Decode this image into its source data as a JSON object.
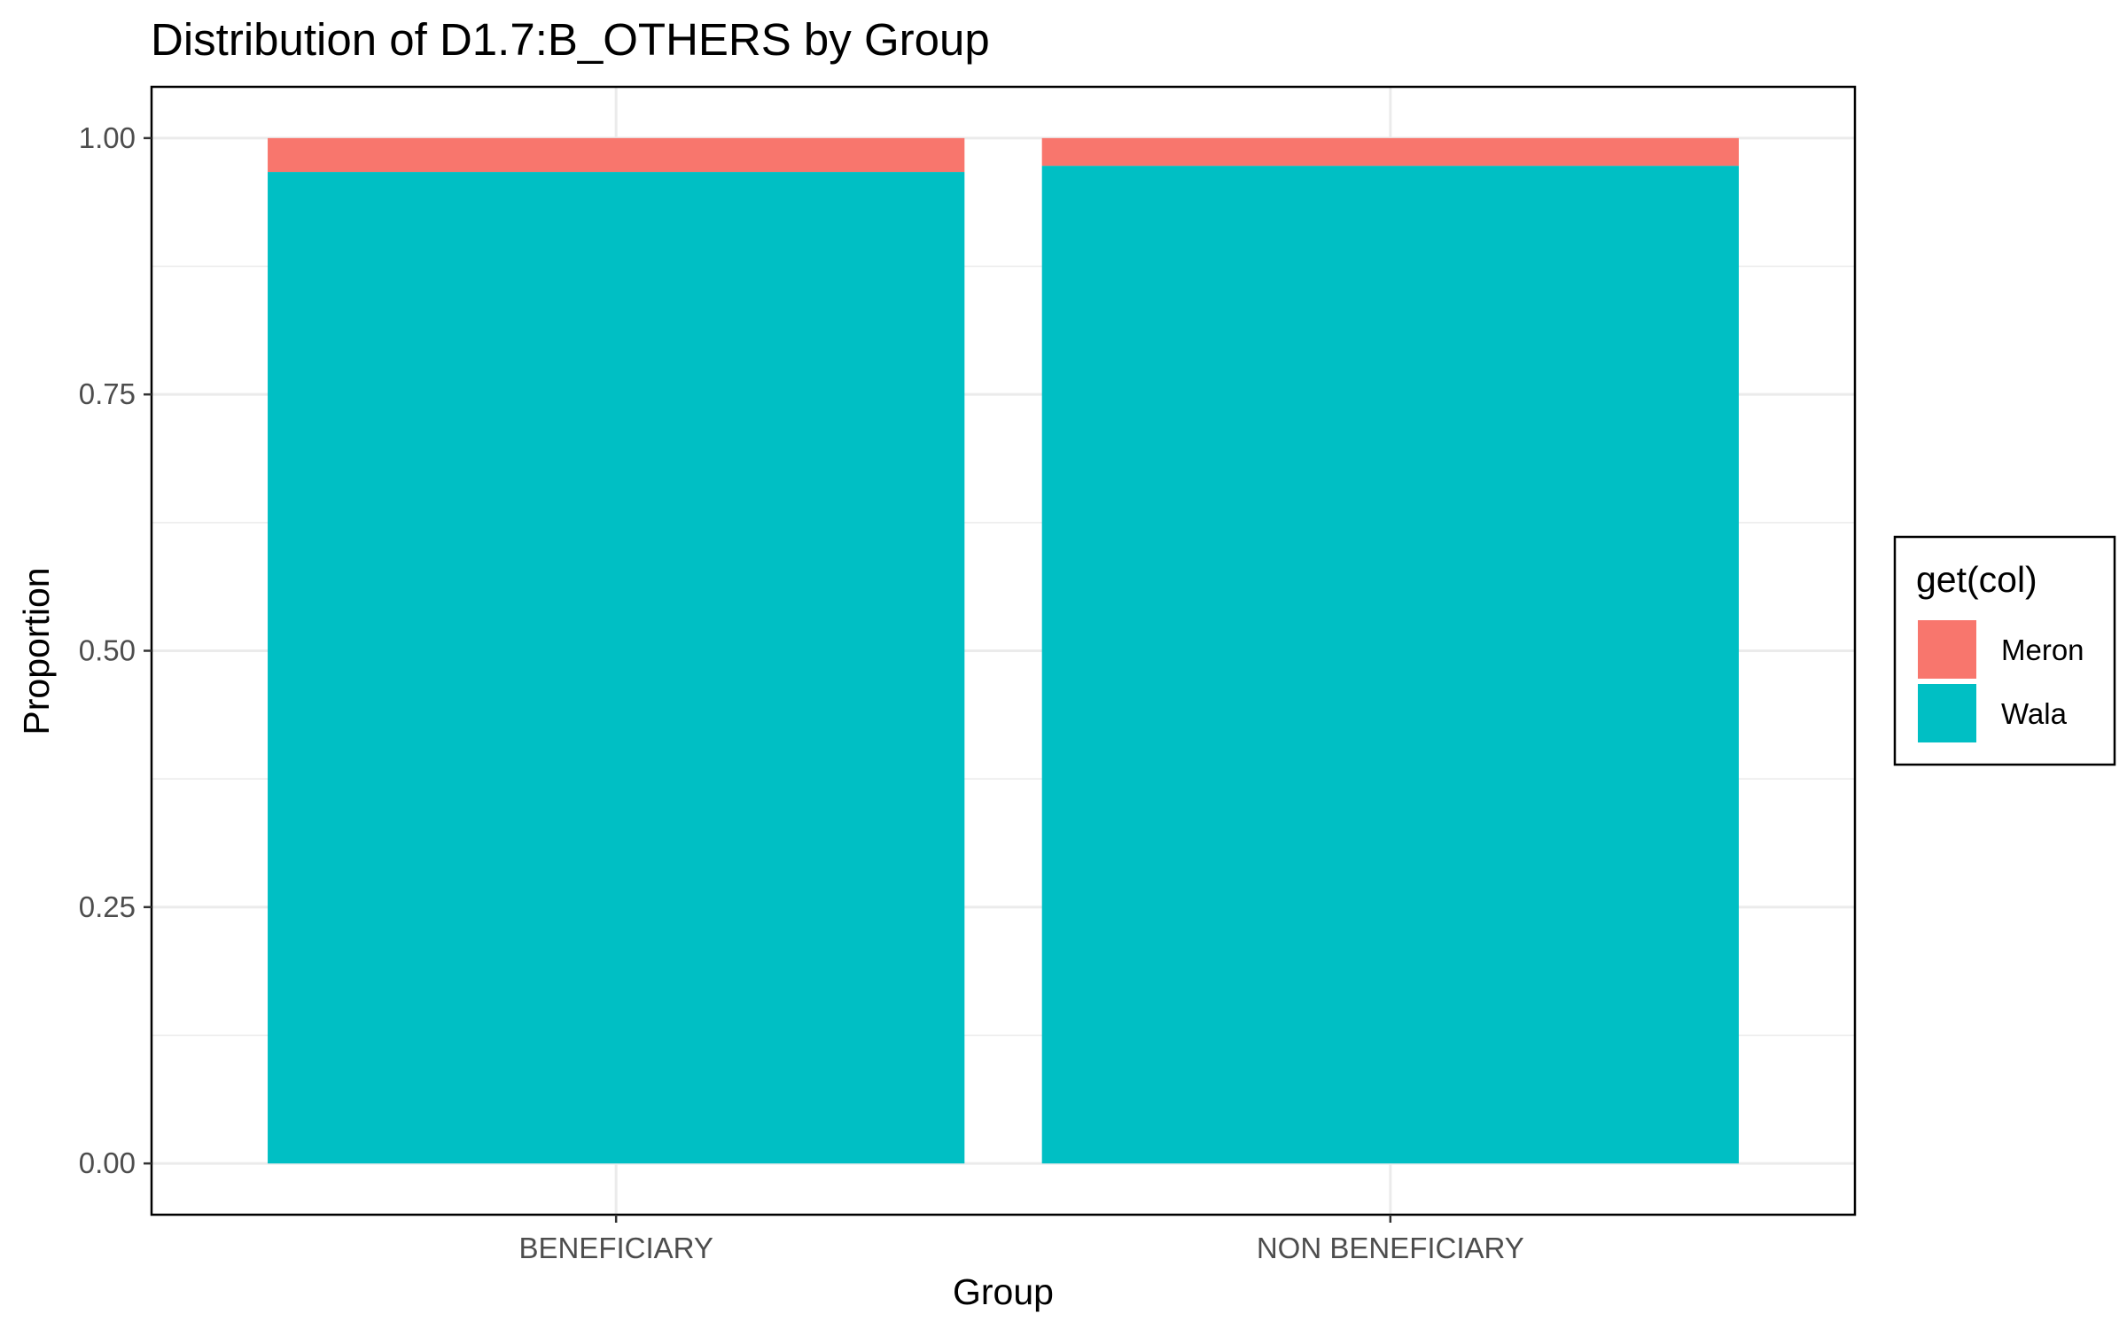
{
  "chart_data": {
    "type": "bar",
    "stacked": true,
    "title": "Distribution of D1.7:B_OTHERS by Group",
    "xlabel": "Group",
    "ylabel": "Proportion",
    "categories": [
      "BENEFICIARY",
      "NON BENEFICIARY"
    ],
    "series": [
      {
        "name": "Wala",
        "values": [
          0.967,
          0.973
        ],
        "color": "#00BFC4"
      },
      {
        "name": "Meron",
        "values": [
          0.033,
          0.027
        ],
        "color": "#F8766D"
      }
    ],
    "ylim": [
      -0.05,
      1.05
    ],
    "yticks": [
      0,
      0.25,
      0.5,
      0.75,
      1.0
    ],
    "ytick_labels": [
      "0.00",
      "0.25",
      "0.50",
      "0.75",
      "1.00"
    ],
    "grid": true,
    "legend": {
      "title": "get(col)",
      "position": "right",
      "entries": [
        "Meron",
        "Wala"
      ]
    }
  }
}
